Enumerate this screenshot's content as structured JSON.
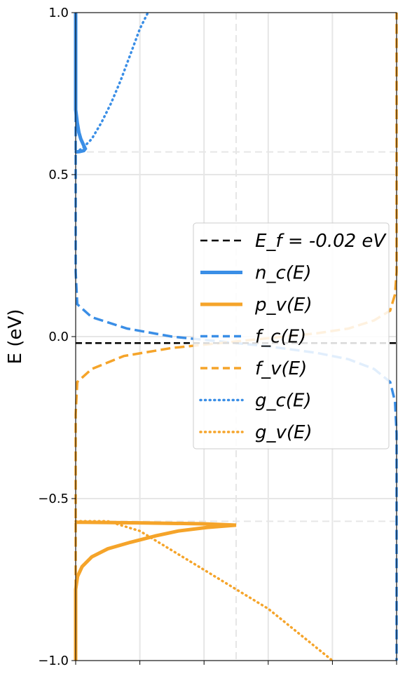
{
  "chart_data": {
    "type": "line",
    "title": "",
    "xlabel": "",
    "ylabel": "E (eV)",
    "ylim": [
      -1.0,
      1.0
    ],
    "xlim": [
      0,
      1
    ],
    "yticks": [
      -1.0,
      -0.5,
      0.0,
      0.5,
      1.0
    ],
    "ytick_labels": [
      "−1.0",
      "−0.5",
      "0.0",
      "0.5",
      "1.0"
    ],
    "xticks": [
      0,
      0.2,
      0.4,
      0.6,
      0.8,
      1.0
    ],
    "grid": true,
    "fermi_level": -0.02,
    "conduction_band_edge": 0.57,
    "valence_band_edge": -0.57,
    "legend": {
      "placement": "center-right",
      "entries": [
        {
          "text": "E_f = -0.02 eV",
          "color": "#000000",
          "style": "dashed",
          "width": 2.5
        },
        {
          "text": "n_c(E)",
          "color": "#3a8ee6",
          "style": "solid",
          "width": 5
        },
        {
          "text": "p_v(E)",
          "color": "#f5a42a",
          "style": "solid",
          "width": 5
        },
        {
          "text": "f_c(E)",
          "color": "#3a8ee6",
          "style": "dashed",
          "width": 3.5
        },
        {
          "text": "f_v(E)",
          "color": "#f5a42a",
          "style": "dashed",
          "width": 3.5
        },
        {
          "text": "g_c(E)",
          "color": "#3a8ee6",
          "style": "dotted",
          "width": 3.5
        },
        {
          "text": "g_v(E)",
          "color": "#f5a42a",
          "style": "dotted",
          "width": 3.5
        }
      ]
    },
    "series": [
      {
        "name": "n_c(E)",
        "color": "#3a8ee6",
        "style": "solid",
        "points": [
          [
            0.0,
            1.0
          ],
          [
            0.0,
            0.7
          ],
          [
            0.005,
            0.66
          ],
          [
            0.01,
            0.63
          ],
          [
            0.016,
            0.61
          ],
          [
            0.025,
            0.59
          ],
          [
            0.03,
            0.58
          ],
          [
            0.025,
            0.574
          ],
          [
            0.012,
            0.571
          ],
          [
            0.0,
            0.57
          ]
        ]
      },
      {
        "name": "p_v(E)",
        "color": "#f5a42a",
        "style": "solid",
        "points": [
          [
            0.0,
            -1.0
          ],
          [
            0.0,
            -0.78
          ],
          [
            0.006,
            -0.74
          ],
          [
            0.02,
            -0.71
          ],
          [
            0.05,
            -0.68
          ],
          [
            0.1,
            -0.655
          ],
          [
            0.17,
            -0.635
          ],
          [
            0.25,
            -0.615
          ],
          [
            0.32,
            -0.6
          ],
          [
            0.41,
            -0.589
          ],
          [
            0.5,
            -0.582
          ],
          [
            0.4,
            -0.578
          ],
          [
            0.2,
            -0.575
          ],
          [
            0.0,
            -0.573
          ]
        ]
      },
      {
        "name": "f_c(E)",
        "color": "#3a8ee6",
        "style": "dashed",
        "points": [
          [
            0.0,
            1.0
          ],
          [
            0.0,
            0.2
          ],
          [
            0.005,
            0.1
          ],
          [
            0.05,
            0.06
          ],
          [
            0.16,
            0.025
          ],
          [
            0.3,
            0.0
          ],
          [
            0.45,
            -0.015
          ],
          [
            0.6,
            -0.03
          ],
          [
            0.75,
            -0.05
          ],
          [
            0.85,
            -0.07
          ],
          [
            0.93,
            -0.1
          ],
          [
            0.98,
            -0.14
          ],
          [
            0.995,
            -0.2
          ],
          [
            1.0,
            -0.3
          ],
          [
            1.0,
            -1.0
          ]
        ]
      },
      {
        "name": "f_v(E)",
        "color": "#f5a42a",
        "style": "dashed",
        "points": [
          [
            0.0,
            -1.0
          ],
          [
            0.0,
            -0.24
          ],
          [
            0.005,
            -0.14
          ],
          [
            0.05,
            -0.1
          ],
          [
            0.15,
            -0.06
          ],
          [
            0.3,
            -0.035
          ],
          [
            0.45,
            -0.02
          ],
          [
            0.6,
            -0.005
          ],
          [
            0.75,
            0.01
          ],
          [
            0.85,
            0.025
          ],
          [
            0.93,
            0.05
          ],
          [
            0.98,
            0.08
          ],
          [
            0.995,
            0.13
          ],
          [
            1.0,
            0.2
          ],
          [
            1.0,
            1.0
          ]
        ]
      },
      {
        "name": "g_c(E)",
        "color": "#3a8ee6",
        "style": "dotted",
        "points": [
          [
            0.0,
            0.57
          ],
          [
            0.02,
            0.58
          ],
          [
            0.05,
            0.61
          ],
          [
            0.08,
            0.66
          ],
          [
            0.11,
            0.72
          ],
          [
            0.14,
            0.79
          ],
          [
            0.17,
            0.87
          ],
          [
            0.2,
            0.95
          ],
          [
            0.225,
            1.0
          ]
        ]
      },
      {
        "name": "g_v(E)",
        "color": "#f5a42a",
        "style": "dotted",
        "points": [
          [
            0.0,
            -0.57
          ],
          [
            0.1,
            -0.57
          ],
          [
            0.2,
            -0.6
          ],
          [
            0.3,
            -0.66
          ],
          [
            0.4,
            -0.72
          ],
          [
            0.5,
            -0.78
          ],
          [
            0.6,
            -0.84
          ],
          [
            0.7,
            -0.92
          ],
          [
            0.8,
            -1.0
          ]
        ]
      }
    ]
  }
}
